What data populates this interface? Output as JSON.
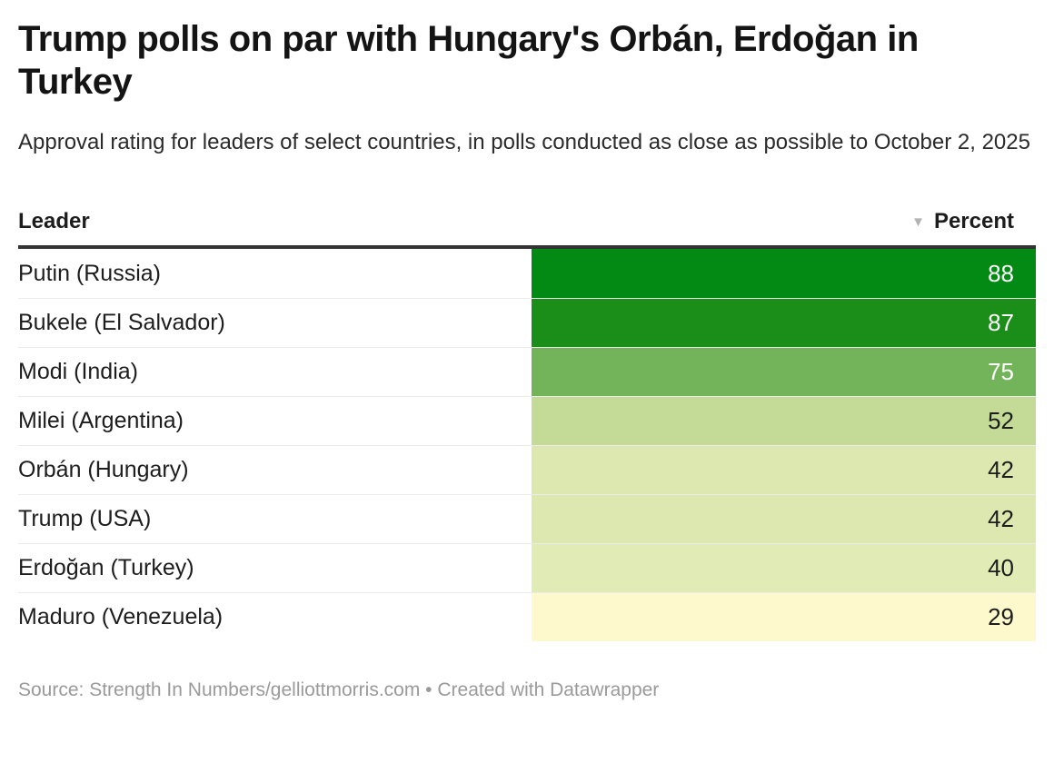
{
  "title": "Trump polls on par with Hungary's Orbán, Erdoğan in Turkey",
  "subtitle": "Approval rating for leaders of select countries, in polls conducted as close as possible to October 2, 2025",
  "table": {
    "columns": [
      {
        "label": "Leader"
      },
      {
        "label": "Percent"
      }
    ],
    "sort_icon": "▼",
    "rows": [
      {
        "leader": "Putin (Russia)",
        "percent": "88",
        "cell_color": "#028a14",
        "text_color": "#ffffff"
      },
      {
        "leader": "Bukele (El Salvador)",
        "percent": "87",
        "cell_color": "#1b8d19",
        "text_color": "#ffffff"
      },
      {
        "leader": "Modi (India)",
        "percent": "75",
        "cell_color": "#73b45a",
        "text_color": "#ffffff"
      },
      {
        "leader": "Milei (Argentina)",
        "percent": "52",
        "cell_color": "#c4db97",
        "text_color": "#1d1d1d"
      },
      {
        "leader": "Orbán (Hungary)",
        "percent": "42",
        "cell_color": "#dce8af",
        "text_color": "#1d1d1d"
      },
      {
        "leader": "Trump (USA)",
        "percent": "42",
        "cell_color": "#dce8af",
        "text_color": "#1d1d1d"
      },
      {
        "leader": "Erdoğan (Turkey)",
        "percent": "40",
        "cell_color": "#e0ebb5",
        "text_color": "#1d1d1d"
      },
      {
        "leader": "Maduro (Venezuela)",
        "percent": "29",
        "cell_color": "#fdf9cc",
        "text_color": "#1d1d1d"
      }
    ]
  },
  "footer": "Source: Strength In Numbers/gelliottmorris.com • Created with Datawrapper",
  "chart_data": {
    "type": "table",
    "title": "Trump polls on par with Hungary's Orbán, Erdoğan in Turkey",
    "subtitle": "Approval rating for leaders of select countries, in polls conducted as close as possible to October 2, 2025",
    "columns": [
      "Leader",
      "Percent"
    ],
    "sort": {
      "column": "Percent",
      "direction": "desc"
    },
    "categories": [
      "Putin (Russia)",
      "Bukele (El Salvador)",
      "Modi (India)",
      "Milei (Argentina)",
      "Orbán (Hungary)",
      "Trump (USA)",
      "Erdoğan (Turkey)",
      "Maduro (Venezuela)"
    ],
    "values": [
      88,
      87,
      75,
      52,
      42,
      42,
      40,
      29
    ],
    "value_range": [
      0,
      100
    ],
    "cell_colors": [
      "#028a14",
      "#1b8d19",
      "#73b45a",
      "#c4db97",
      "#dce8af",
      "#dce8af",
      "#e0ebb5",
      "#fdf9cc"
    ],
    "colormap": "yellow-to-green heatmap on Percent column"
  }
}
